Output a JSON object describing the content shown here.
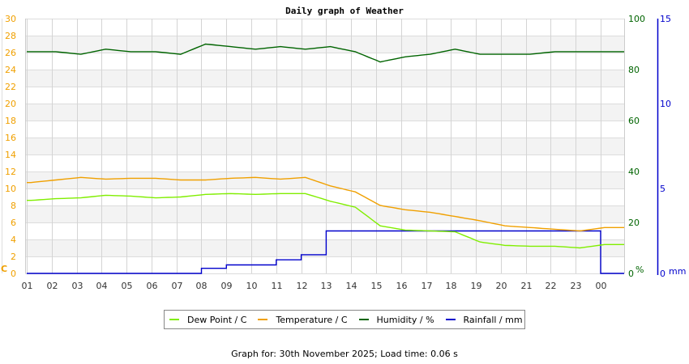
{
  "chart_data": {
    "type": "line",
    "title": "Daily graph of Weather",
    "x": [
      "01",
      "02",
      "03",
      "04",
      "05",
      "06",
      "07",
      "08",
      "09",
      "10",
      "11",
      "12",
      "13",
      "14",
      "15",
      "16",
      "17",
      "18",
      "19",
      "20",
      "21",
      "22",
      "23",
      "00"
    ],
    "xlabel": "",
    "axes": {
      "left": {
        "label": "C",
        "range": [
          0,
          30
        ],
        "ticks": [
          0,
          2,
          4,
          6,
          8,
          10,
          12,
          14,
          16,
          18,
          20,
          22,
          24,
          26,
          28,
          30
        ],
        "color": "#f0a000"
      },
      "right1": {
        "label": "%",
        "range": [
          0,
          100
        ],
        "ticks": [
          0,
          20,
          40,
          60,
          80,
          100
        ],
        "color": "#006400"
      },
      "right2": {
        "label": "mm",
        "range": [
          0,
          15
        ],
        "ticks": [
          0,
          5,
          10,
          15
        ],
        "color": "#0000cc"
      }
    },
    "grid": true,
    "legend_position": "bottom",
    "series": [
      {
        "name": "Dew Point / C",
        "color": "#80ee00",
        "axis": "left",
        "values": [
          8.6,
          8.8,
          8.9,
          9.2,
          9.1,
          8.9,
          9.0,
          9.3,
          9.4,
          9.3,
          9.4,
          9.4,
          8.5,
          7.8,
          5.6,
          5.1,
          5.0,
          4.9,
          3.7,
          3.3,
          3.2,
          3.2,
          3.0,
          3.4
        ]
      },
      {
        "name": "Temperature / C",
        "color": "#f0a000",
        "axis": "left",
        "values": [
          10.7,
          11.0,
          11.3,
          11.1,
          11.2,
          11.2,
          11.0,
          11.0,
          11.2,
          11.3,
          11.1,
          11.3,
          10.3,
          9.6,
          8.0,
          7.5,
          7.2,
          6.7,
          6.2,
          5.6,
          5.4,
          5.2,
          5.0,
          5.4
        ]
      },
      {
        "name": "Humidity / %",
        "color": "#006400",
        "axis": "right1",
        "values": [
          87,
          87,
          86,
          88,
          87,
          87,
          86,
          90,
          89,
          88,
          89,
          88,
          89,
          87,
          83,
          85,
          86,
          88,
          86,
          86,
          86,
          87,
          87,
          87
        ]
      },
      {
        "name": "Rainfall / mm",
        "color": "#0000cc",
        "axis": "right2",
        "values": [
          0,
          0,
          0,
          0,
          0,
          0,
          0,
          0.3,
          0.5,
          0.5,
          0.8,
          1.1,
          2.5,
          2.5,
          2.5,
          2.5,
          2.5,
          2.5,
          2.5,
          2.5,
          2.5,
          2.5,
          2.5,
          0
        ]
      }
    ]
  },
  "legend": {
    "items": [
      {
        "label": "Dew Point / C",
        "color": "#80ee00"
      },
      {
        "label": "Temperature / C",
        "color": "#f0a000"
      },
      {
        "label": "Humidity / %",
        "color": "#006400"
      },
      {
        "label": "Rainfall / mm",
        "color": "#0000cc"
      }
    ]
  },
  "footer": {
    "text": "Graph for: 30th November 2025; Load time: 0.06 s"
  }
}
